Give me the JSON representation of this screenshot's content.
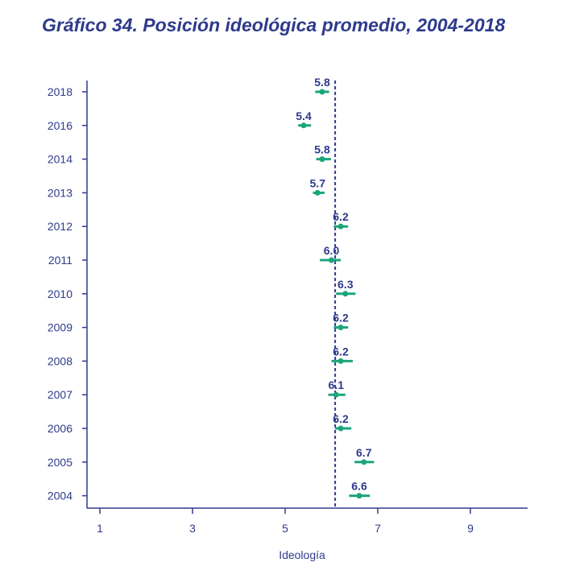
{
  "title": "Gráfico 34. Posición ideológica promedio, 2004-2018",
  "colors": {
    "axis": "#2e3a8c",
    "marker": "#1aa57a",
    "ref_line": "#2e3a8c"
  },
  "chart_data": {
    "type": "scatter",
    "title": "Gráfico 34. Posición ideológica promedio, 2004-2018",
    "xlabel": "Ideología",
    "ylabel": "",
    "xlim": [
      0.7,
      10.2
    ],
    "xticks": [
      1,
      3,
      5,
      7,
      9
    ],
    "reference_line_x": 6.08,
    "categories": [
      "2018",
      "2016",
      "2014",
      "2013",
      "2012",
      "2011",
      "2010",
      "2009",
      "2008",
      "2007",
      "2006",
      "2005",
      "2004"
    ],
    "points": [
      {
        "year": "2018",
        "value": 5.8,
        "label": "5.8",
        "ci": [
          5.65,
          5.95
        ]
      },
      {
        "year": "2016",
        "value": 5.4,
        "label": "5.4",
        "ci": [
          5.28,
          5.56
        ]
      },
      {
        "year": "2014",
        "value": 5.8,
        "label": "5.8",
        "ci": [
          5.67,
          5.99
        ]
      },
      {
        "year": "2013",
        "value": 5.7,
        "label": "5.7",
        "ci": [
          5.6,
          5.85
        ]
      },
      {
        "year": "2012",
        "value": 6.2,
        "label": "6.2",
        "ci": [
          6.05,
          6.36
        ]
      },
      {
        "year": "2011",
        "value": 6.0,
        "label": "6.0",
        "ci": [
          5.75,
          6.2
        ]
      },
      {
        "year": "2010",
        "value": 6.3,
        "label": "6.3",
        "ci": [
          6.1,
          6.52
        ]
      },
      {
        "year": "2009",
        "value": 6.2,
        "label": "6.2",
        "ci": [
          6.05,
          6.36
        ]
      },
      {
        "year": "2008",
        "value": 6.2,
        "label": "6.2",
        "ci": [
          6.0,
          6.46
        ]
      },
      {
        "year": "2007",
        "value": 6.1,
        "label": "6.1",
        "ci": [
          5.93,
          6.3
        ]
      },
      {
        "year": "2006",
        "value": 6.2,
        "label": "6.2",
        "ci": [
          6.08,
          6.43
        ]
      },
      {
        "year": "2005",
        "value": 6.7,
        "label": "6.7",
        "ci": [
          6.5,
          6.92
        ]
      },
      {
        "year": "2004",
        "value": 6.6,
        "label": "6.6",
        "ci": [
          6.38,
          6.83
        ]
      }
    ]
  }
}
